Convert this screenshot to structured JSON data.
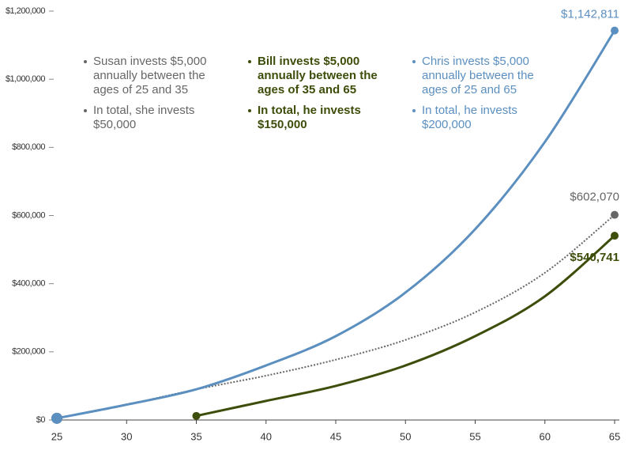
{
  "chart_data": {
    "type": "line",
    "x": [
      25,
      30,
      35,
      40,
      45,
      50,
      55,
      60,
      65
    ],
    "series": [
      {
        "name": "Susan",
        "color": "#666666",
        "dash": true,
        "values": [
          5000,
          45000,
          90000,
          130000,
          177000,
          235000,
          316000,
          432000,
          602070
        ],
        "value_labels": [
          null,
          null,
          null,
          null,
          null,
          null,
          null,
          null,
          "$602,070"
        ]
      },
      {
        "name": "Bill",
        "color": "#3d4d0a",
        "dash": false,
        "values": [
          null,
          null,
          12000,
          56000,
          100000,
          160000,
          246000,
          363000,
          540741
        ],
        "value_labels": [
          null,
          null,
          null,
          null,
          null,
          null,
          null,
          null,
          "$540,741"
        ]
      },
      {
        "name": "Chris",
        "color": "#5b8fc0",
        "dash": false,
        "values": [
          5000,
          45000,
          90000,
          160000,
          246000,
          374000,
          560000,
          816000,
          1142811
        ],
        "value_labels": [
          null,
          null,
          null,
          null,
          null,
          null,
          null,
          null,
          "$1,142,811"
        ]
      }
    ],
    "annotations": [
      {
        "color": "#666666",
        "bold": false,
        "items": [
          [
            "Susan invests $5,000",
            "annually between the",
            "ages of 25 and 35"
          ],
          [
            "In total, she invests",
            "$50,000"
          ]
        ]
      },
      {
        "color": "#3d4d0a",
        "bold": true,
        "items": [
          [
            "Bill invests $5,000",
            "annually between the",
            "ages of 35 and 65"
          ],
          [
            "In total, he invests",
            "$150,000"
          ]
        ]
      },
      {
        "color": "#5b8fc0",
        "bold": false,
        "items": [
          [
            "Chris invests $5,000",
            "annually between the",
            "ages of 25 and 65"
          ],
          [
            "In total, he invests",
            "$200,000"
          ]
        ]
      }
    ],
    "xlim": [
      25,
      65
    ],
    "xticks": [
      25,
      30,
      35,
      40,
      45,
      50,
      55,
      60,
      65
    ],
    "ylim": [
      0,
      1200000
    ],
    "yticks": [
      {
        "value": 0,
        "label": "$0"
      },
      {
        "value": 200000,
        "label": "$200,000"
      },
      {
        "value": 400000,
        "label": "$400,000"
      },
      {
        "value": 600000,
        "label": "$600,000"
      },
      {
        "value": 800000,
        "label": "$800,000"
      },
      {
        "value": 1000000,
        "label": "$1,000,000"
      },
      {
        "value": 1200000,
        "label": "$1,200,000"
      }
    ],
    "grid": false
  }
}
